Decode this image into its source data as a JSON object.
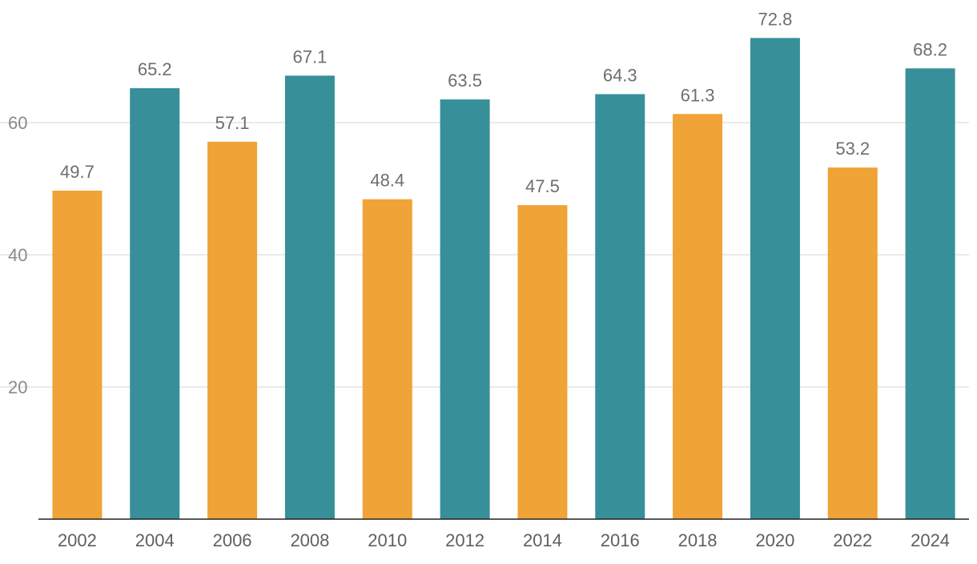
{
  "colors": {
    "even_bar": "#f0a336",
    "odd_bar": "#368f99"
  },
  "chart_data": {
    "type": "bar",
    "title": "",
    "xlabel": "",
    "ylabel": "",
    "ylim": [
      0,
      75
    ],
    "yticks": [
      20,
      40,
      60
    ],
    "grid": true,
    "categories": [
      "2002",
      "2004",
      "2006",
      "2008",
      "2010",
      "2012",
      "2014",
      "2016",
      "2018",
      "2020",
      "2022",
      "2024"
    ],
    "values": [
      49.7,
      65.2,
      57.1,
      67.1,
      48.4,
      63.5,
      47.5,
      64.3,
      61.3,
      72.8,
      53.2,
      68.2
    ],
    "value_labels": [
      "49.7",
      "65.2",
      "57.1",
      "67.1",
      "48.4",
      "63.5",
      "47.5",
      "64.3",
      "61.3",
      "72.8",
      "53.2",
      "68.2"
    ],
    "bar_colors": [
      "#f0a336",
      "#368f99",
      "#f0a336",
      "#368f99",
      "#f0a336",
      "#368f99",
      "#f0a336",
      "#368f99",
      "#f0a336",
      "#368f99",
      "#f0a336",
      "#368f99"
    ]
  }
}
